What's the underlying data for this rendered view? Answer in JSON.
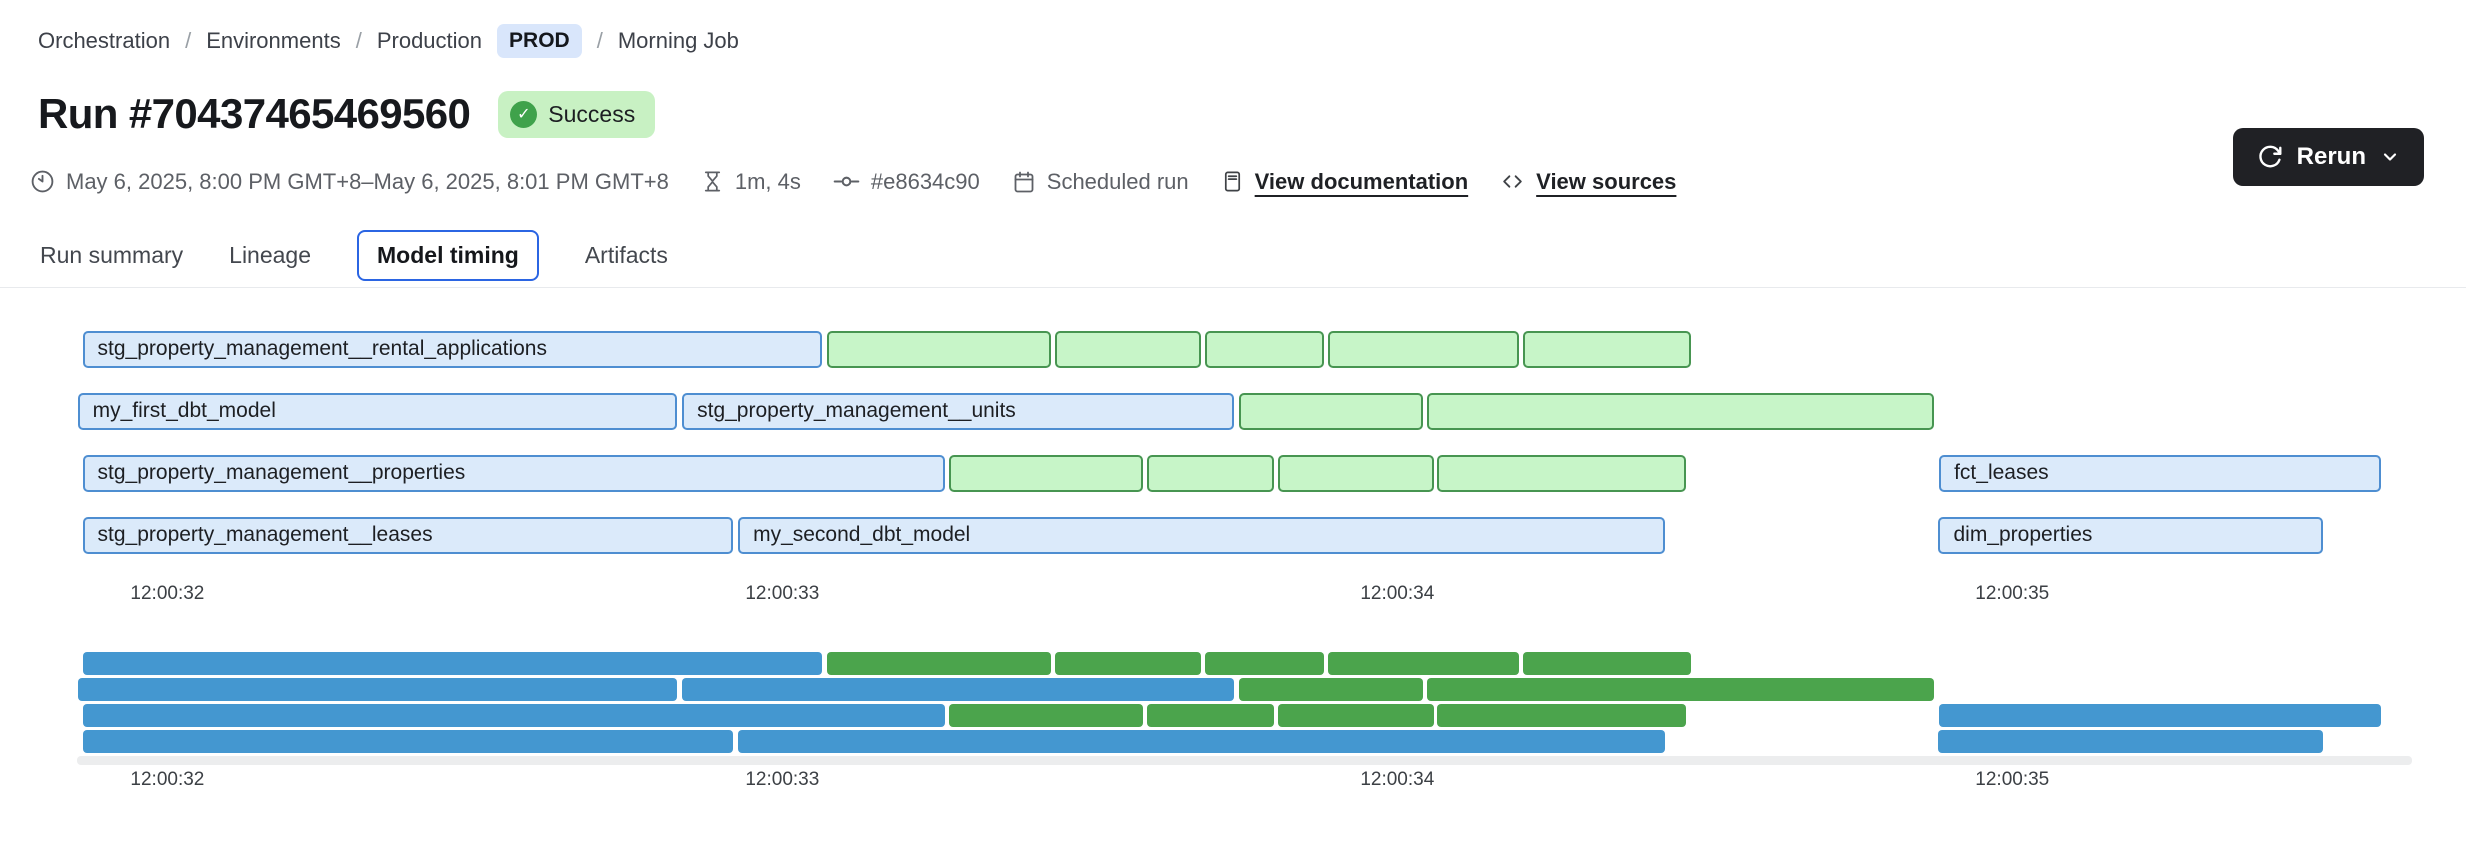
{
  "colors": {
    "model_fill": "#dbeafa",
    "model_border": "#4e8ed1",
    "test_fill": "#c7f5c8",
    "test_border": "#479551",
    "minimap_model": "#4497d0",
    "minimap_test": "#4ba44c",
    "tab_active_border": "#2b65e3",
    "success_bg": "#c8f1c3",
    "success_check": "#3fa24b",
    "env_badge_bg": "#d9e6fb",
    "rerun_bg": "#202125"
  },
  "icons": {
    "clock": "clock-icon",
    "hourglass": "hourglass-icon",
    "commit": "git-commit-icon",
    "calendar": "calendar-icon",
    "document": "document-icon",
    "code": "code-icon",
    "refresh": "refresh-icon",
    "chevron": "chevron-down-icon",
    "check": "✓"
  },
  "breadcrumb": {
    "items": [
      "Orchestration",
      "Environments",
      "Production",
      "Morning Job"
    ],
    "separator": "/",
    "env_badge": "PROD"
  },
  "header": {
    "title": "Run #70437465469560",
    "status": "Success",
    "rerun_label": "Rerun"
  },
  "meta": {
    "time_range": "May 6, 2025, 8:00 PM GMT+8–May 6, 2025, 8:01 PM GMT+8",
    "duration": "1m, 4s",
    "commit": "#e8634c90",
    "trigger": "Scheduled run",
    "docs_link": "View documentation",
    "sources_link": "View sources"
  },
  "tabs": {
    "items": [
      {
        "label": "Run summary",
        "selected": false
      },
      {
        "label": "Lineage",
        "selected": false
      },
      {
        "label": "Model timing",
        "selected": true
      },
      {
        "label": "Artifacts",
        "selected": false
      }
    ]
  },
  "chart_data": {
    "type": "gantt",
    "note": "Model timing chart; times are seconds relative to the 12:00:32 tick; type model=blue, test=green",
    "axis": {
      "min": -0.147,
      "max": 3.65,
      "ticks": [
        {
          "t": 0,
          "label": "12:00:32"
        },
        {
          "t": 1,
          "label": "12:00:33"
        },
        {
          "t": 2,
          "label": "12:00:34"
        },
        {
          "t": 3,
          "label": "12:00:35"
        }
      ]
    },
    "rows": [
      {
        "bars": [
          {
            "label": "stg_property_management__rental_applications",
            "type": "model",
            "start": -0.138,
            "end": 1.065
          },
          {
            "type": "test",
            "start": 1.072,
            "end": 1.437
          },
          {
            "type": "test",
            "start": 1.443,
            "end": 1.681
          },
          {
            "type": "test",
            "start": 1.688,
            "end": 1.88
          },
          {
            "type": "test",
            "start": 1.887,
            "end": 2.198
          },
          {
            "type": "test",
            "start": 2.204,
            "end": 2.478
          }
        ]
      },
      {
        "bars": [
          {
            "label": "my_first_dbt_model",
            "type": "model",
            "start": -0.146,
            "end": 0.828
          },
          {
            "label": "stg_property_management__units",
            "type": "model",
            "start": 0.837,
            "end": 1.735
          },
          {
            "type": "test",
            "start": 1.742,
            "end": 2.042
          },
          {
            "type": "test",
            "start": 2.048,
            "end": 2.873
          }
        ]
      },
      {
        "bars": [
          {
            "label": "stg_property_management__properties",
            "type": "model",
            "start": -0.138,
            "end": 1.265
          },
          {
            "type": "test",
            "start": 1.271,
            "end": 1.587
          },
          {
            "type": "test",
            "start": 1.593,
            "end": 1.8
          },
          {
            "type": "test",
            "start": 1.806,
            "end": 2.059
          },
          {
            "type": "test",
            "start": 2.064,
            "end": 2.47
          },
          {
            "label": "fct_leases",
            "type": "model",
            "start": 2.881,
            "end": 3.599
          }
        ]
      },
      {
        "bars": [
          {
            "label": "stg_property_management__leases",
            "type": "model",
            "start": -0.138,
            "end": 0.92
          },
          {
            "label": "my_second_dbt_model",
            "type": "model",
            "start": 0.928,
            "end": 2.436
          },
          {
            "label": "dim_properties",
            "type": "model",
            "start": 2.88,
            "end": 3.506
          }
        ]
      }
    ]
  }
}
